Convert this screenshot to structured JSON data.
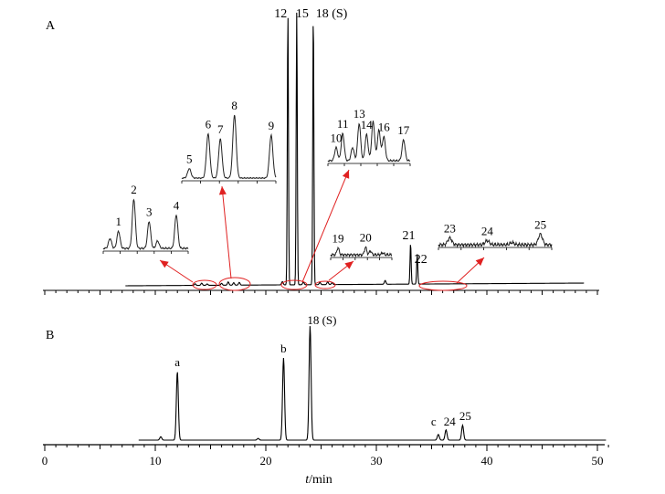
{
  "chart_data": [
    {
      "type": "line",
      "panel_label": "A",
      "xlim": [
        0,
        50
      ],
      "standard_label": "18 (S)",
      "main_peaks": [
        {
          "label": "12",
          "x": 22.0,
          "height": 1.0
        },
        {
          "label": "15",
          "x": 22.8,
          "height": 1.0
        },
        {
          "label": "18 (S)",
          "x": 24.3,
          "height": 1.0
        },
        {
          "label": "21",
          "x": 33.1,
          "height": 0.15
        },
        {
          "label": "22",
          "x": 33.7,
          "height": 0.11
        }
      ],
      "minor_peaks": [
        {
          "x": 13.6,
          "height": 0.006
        },
        {
          "x": 14.2,
          "height": 0.008
        },
        {
          "x": 14.7,
          "height": 0.005
        },
        {
          "x": 16.0,
          "height": 0.007
        },
        {
          "x": 16.6,
          "height": 0.012
        },
        {
          "x": 17.1,
          "height": 0.009
        },
        {
          "x": 17.6,
          "height": 0.01
        },
        {
          "x": 21.5,
          "height": 0.012
        },
        {
          "x": 23.4,
          "height": 0.01
        },
        {
          "x": 24.9,
          "height": 0.008
        },
        {
          "x": 25.6,
          "height": 0.01
        },
        {
          "x": 26.0,
          "height": 0.007
        },
        {
          "x": 30.8,
          "height": 0.014
        }
      ],
      "insets": [
        {
          "peaks": [
            {
              "label": "1",
              "x": 0.18,
              "h": 0.35
            },
            {
              "label": "2",
              "x": 0.36,
              "h": 1.0
            },
            {
              "label": "3",
              "x": 0.54,
              "h": 0.55
            },
            {
              "label": "4",
              "x": 0.86,
              "h": 0.68
            }
          ],
          "extra": [
            {
              "x": 0.08,
              "h": 0.2
            },
            {
              "x": 0.64,
              "h": 0.15
            }
          ]
        },
        {
          "peaks": [
            {
              "label": "5",
              "x": 0.08,
              "h": 0.15
            },
            {
              "label": "6",
              "x": 0.28,
              "h": 0.7
            },
            {
              "label": "7",
              "x": 0.41,
              "h": 0.62
            },
            {
              "label": "8",
              "x": 0.56,
              "h": 1.0
            },
            {
              "label": "9",
              "x": 0.95,
              "h": 0.68
            }
          ],
          "extra": []
        },
        {
          "peaks": [
            {
              "label": "10",
              "x": 0.1,
              "h": 0.3
            },
            {
              "label": "11",
              "x": 0.18,
              "h": 0.62
            },
            {
              "label": "13",
              "x": 0.38,
              "h": 0.85
            },
            {
              "label": "14",
              "x": 0.47,
              "h": 0.6
            },
            {
              "label": "16",
              "x": 0.68,
              "h": 0.55
            },
            {
              "label": "17",
              "x": 0.92,
              "h": 0.48
            }
          ],
          "extra": [
            {
              "x": 0.55,
              "h": 0.9
            },
            {
              "x": 0.62,
              "h": 0.7
            },
            {
              "x": 0.3,
              "h": 0.3
            }
          ]
        },
        {
          "peaks": [
            {
              "label": "19",
              "x": 0.12,
              "h": 0.55
            },
            {
              "label": "20",
              "x": 0.57,
              "h": 0.6
            }
          ],
          "extra": [
            {
              "x": 0.65,
              "h": 0.3
            },
            {
              "x": 0.85,
              "h": 0.15
            }
          ]
        },
        {
          "peaks": [
            {
              "label": "23",
              "x": 0.1,
              "h": 0.5
            },
            {
              "label": "24",
              "x": 0.43,
              "h": 0.3
            },
            {
              "label": "25",
              "x": 0.9,
              "h": 0.78
            }
          ],
          "extra": [
            {
              "x": 0.65,
              "h": 0.15
            }
          ]
        }
      ]
    },
    {
      "type": "line",
      "panel_label": "B",
      "xlabel_italic": "t",
      "xlabel_unit": "/min",
      "xlim": [
        0,
        51
      ],
      "x_ticks": [
        0,
        10,
        20,
        30,
        40,
        50
      ],
      "x_tick_labels": [
        "0",
        "10",
        "20",
        "30",
        "40",
        "50"
      ],
      "peaks": [
        {
          "label": "",
          "x": 10.5,
          "height": 0.03
        },
        {
          "label": "a",
          "x": 12.0,
          "height": 0.6
        },
        {
          "label": "",
          "x": 19.3,
          "height": 0.015
        },
        {
          "label": "b",
          "x": 21.6,
          "height": 0.72
        },
        {
          "label": "18 (S)",
          "x": 24.0,
          "height": 1.0
        },
        {
          "label": "c",
          "x": 35.6,
          "height": 0.05
        },
        {
          "label": "24",
          "x": 36.3,
          "height": 0.09
        },
        {
          "label": "25",
          "x": 37.8,
          "height": 0.13
        }
      ]
    }
  ]
}
